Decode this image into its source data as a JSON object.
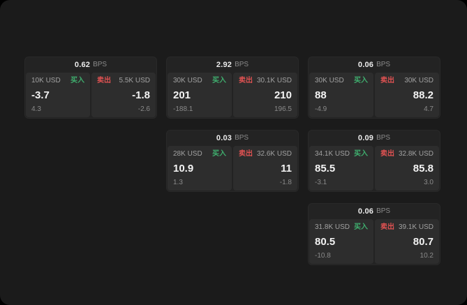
{
  "colors": {
    "buy": "#3fae6e",
    "sell": "#e05252",
    "panel_bg": "#1b1b1b",
    "card_bg": "#232323",
    "tile_bg": "#2d2d2d"
  },
  "labels": {
    "bps_unit": "BPS",
    "buy_tag": "买入",
    "sell_tag": "卖出"
  },
  "cards": [
    {
      "bps_value": "0.62",
      "bps_label": "BPS",
      "buy": {
        "amount": "10K USD",
        "tag": "买入",
        "price": "-3.7",
        "delta": "4.3"
      },
      "sell": {
        "amount": "5.5K USD",
        "tag": "卖出",
        "price": "-1.8",
        "delta": "-2.6"
      }
    },
    {
      "bps_value": "2.92",
      "bps_label": "BPS",
      "buy": {
        "amount": "30K USD",
        "tag": "买入",
        "price": "201",
        "delta": "-188.1"
      },
      "sell": {
        "amount": "30.1K USD",
        "tag": "卖出",
        "price": "210",
        "delta": "196.5"
      }
    },
    {
      "bps_value": "0.06",
      "bps_label": "BPS",
      "buy": {
        "amount": "30K USD",
        "tag": "买入",
        "price": "88",
        "delta": "-4.9"
      },
      "sell": {
        "amount": "30K USD",
        "tag": "卖出",
        "price": "88.2",
        "delta": "4.7"
      }
    },
    {
      "bps_value": "0.03",
      "bps_label": "BPS",
      "buy": {
        "amount": "28K USD",
        "tag": "买入",
        "price": "10.9",
        "delta": "1.3"
      },
      "sell": {
        "amount": "32.6K USD",
        "tag": "卖出",
        "price": "11",
        "delta": "-1.8"
      }
    },
    {
      "bps_value": "0.09",
      "bps_label": "BPS",
      "buy": {
        "amount": "34.1K USD",
        "tag": "买入",
        "price": "85.5",
        "delta": "-3.1"
      },
      "sell": {
        "amount": "32.8K USD",
        "tag": "卖出",
        "price": "85.8",
        "delta": "3.0"
      }
    },
    {
      "bps_value": "0.06",
      "bps_label": "BPS",
      "buy": {
        "amount": "31.8K USD",
        "tag": "买入",
        "price": "80.5",
        "delta": "-10.8"
      },
      "sell": {
        "amount": "39.1K USD",
        "tag": "卖出",
        "price": "80.7",
        "delta": "10.2"
      }
    }
  ]
}
